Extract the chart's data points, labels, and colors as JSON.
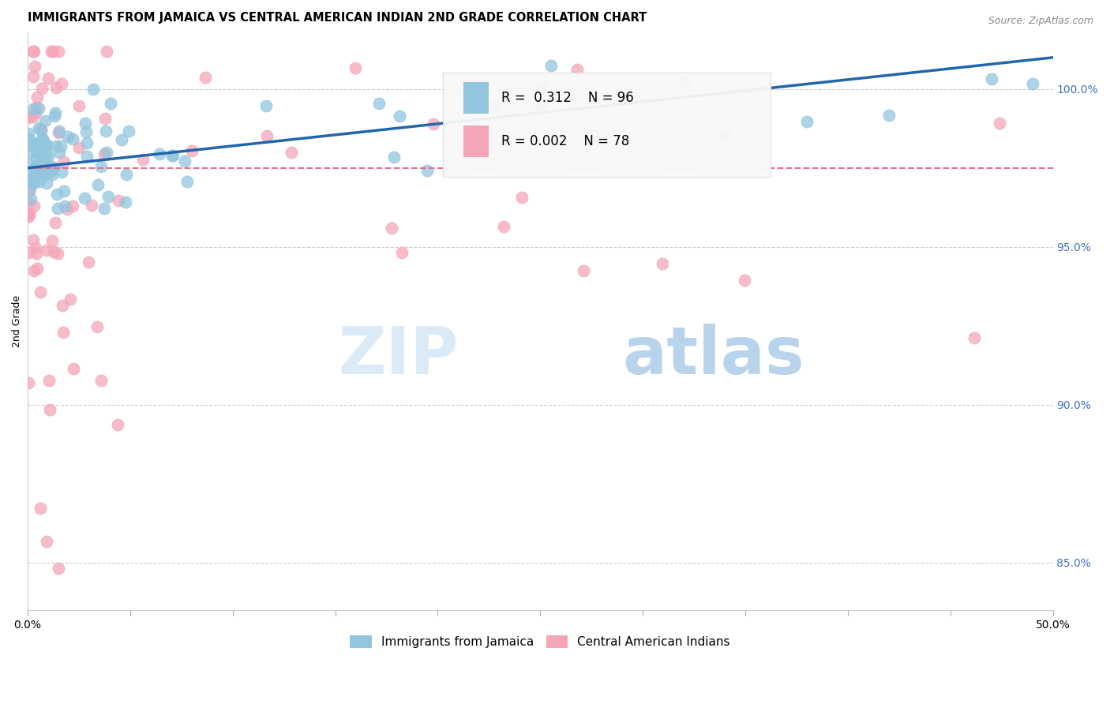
{
  "title": "IMMIGRANTS FROM JAMAICA VS CENTRAL AMERICAN INDIAN 2ND GRADE CORRELATION CHART",
  "source": "Source: ZipAtlas.com",
  "ylabel": "2nd Grade",
  "xmin": 0.0,
  "xmax": 50.0,
  "ymin": 83.5,
  "ymax": 101.8,
  "right_yticks": [
    85.0,
    90.0,
    95.0,
    100.0
  ],
  "legend_blue_label": "Immigrants from Jamaica",
  "legend_pink_label": "Central American Indians",
  "blue_R": 0.312,
  "blue_N": 96,
  "pink_R": 0.002,
  "pink_N": 78,
  "blue_color": "#92c5de",
  "pink_color": "#f4a6b8",
  "blue_line_color": "#2166ac",
  "pink_line_color": "#e8728a",
  "blue_scatter_alpha": 0.75,
  "pink_scatter_alpha": 0.75,
  "marker_size": 120,
  "title_fontsize": 10.5,
  "watermark_zip_color": "#daeaf7",
  "watermark_atlas_color": "#b8d4ec"
}
